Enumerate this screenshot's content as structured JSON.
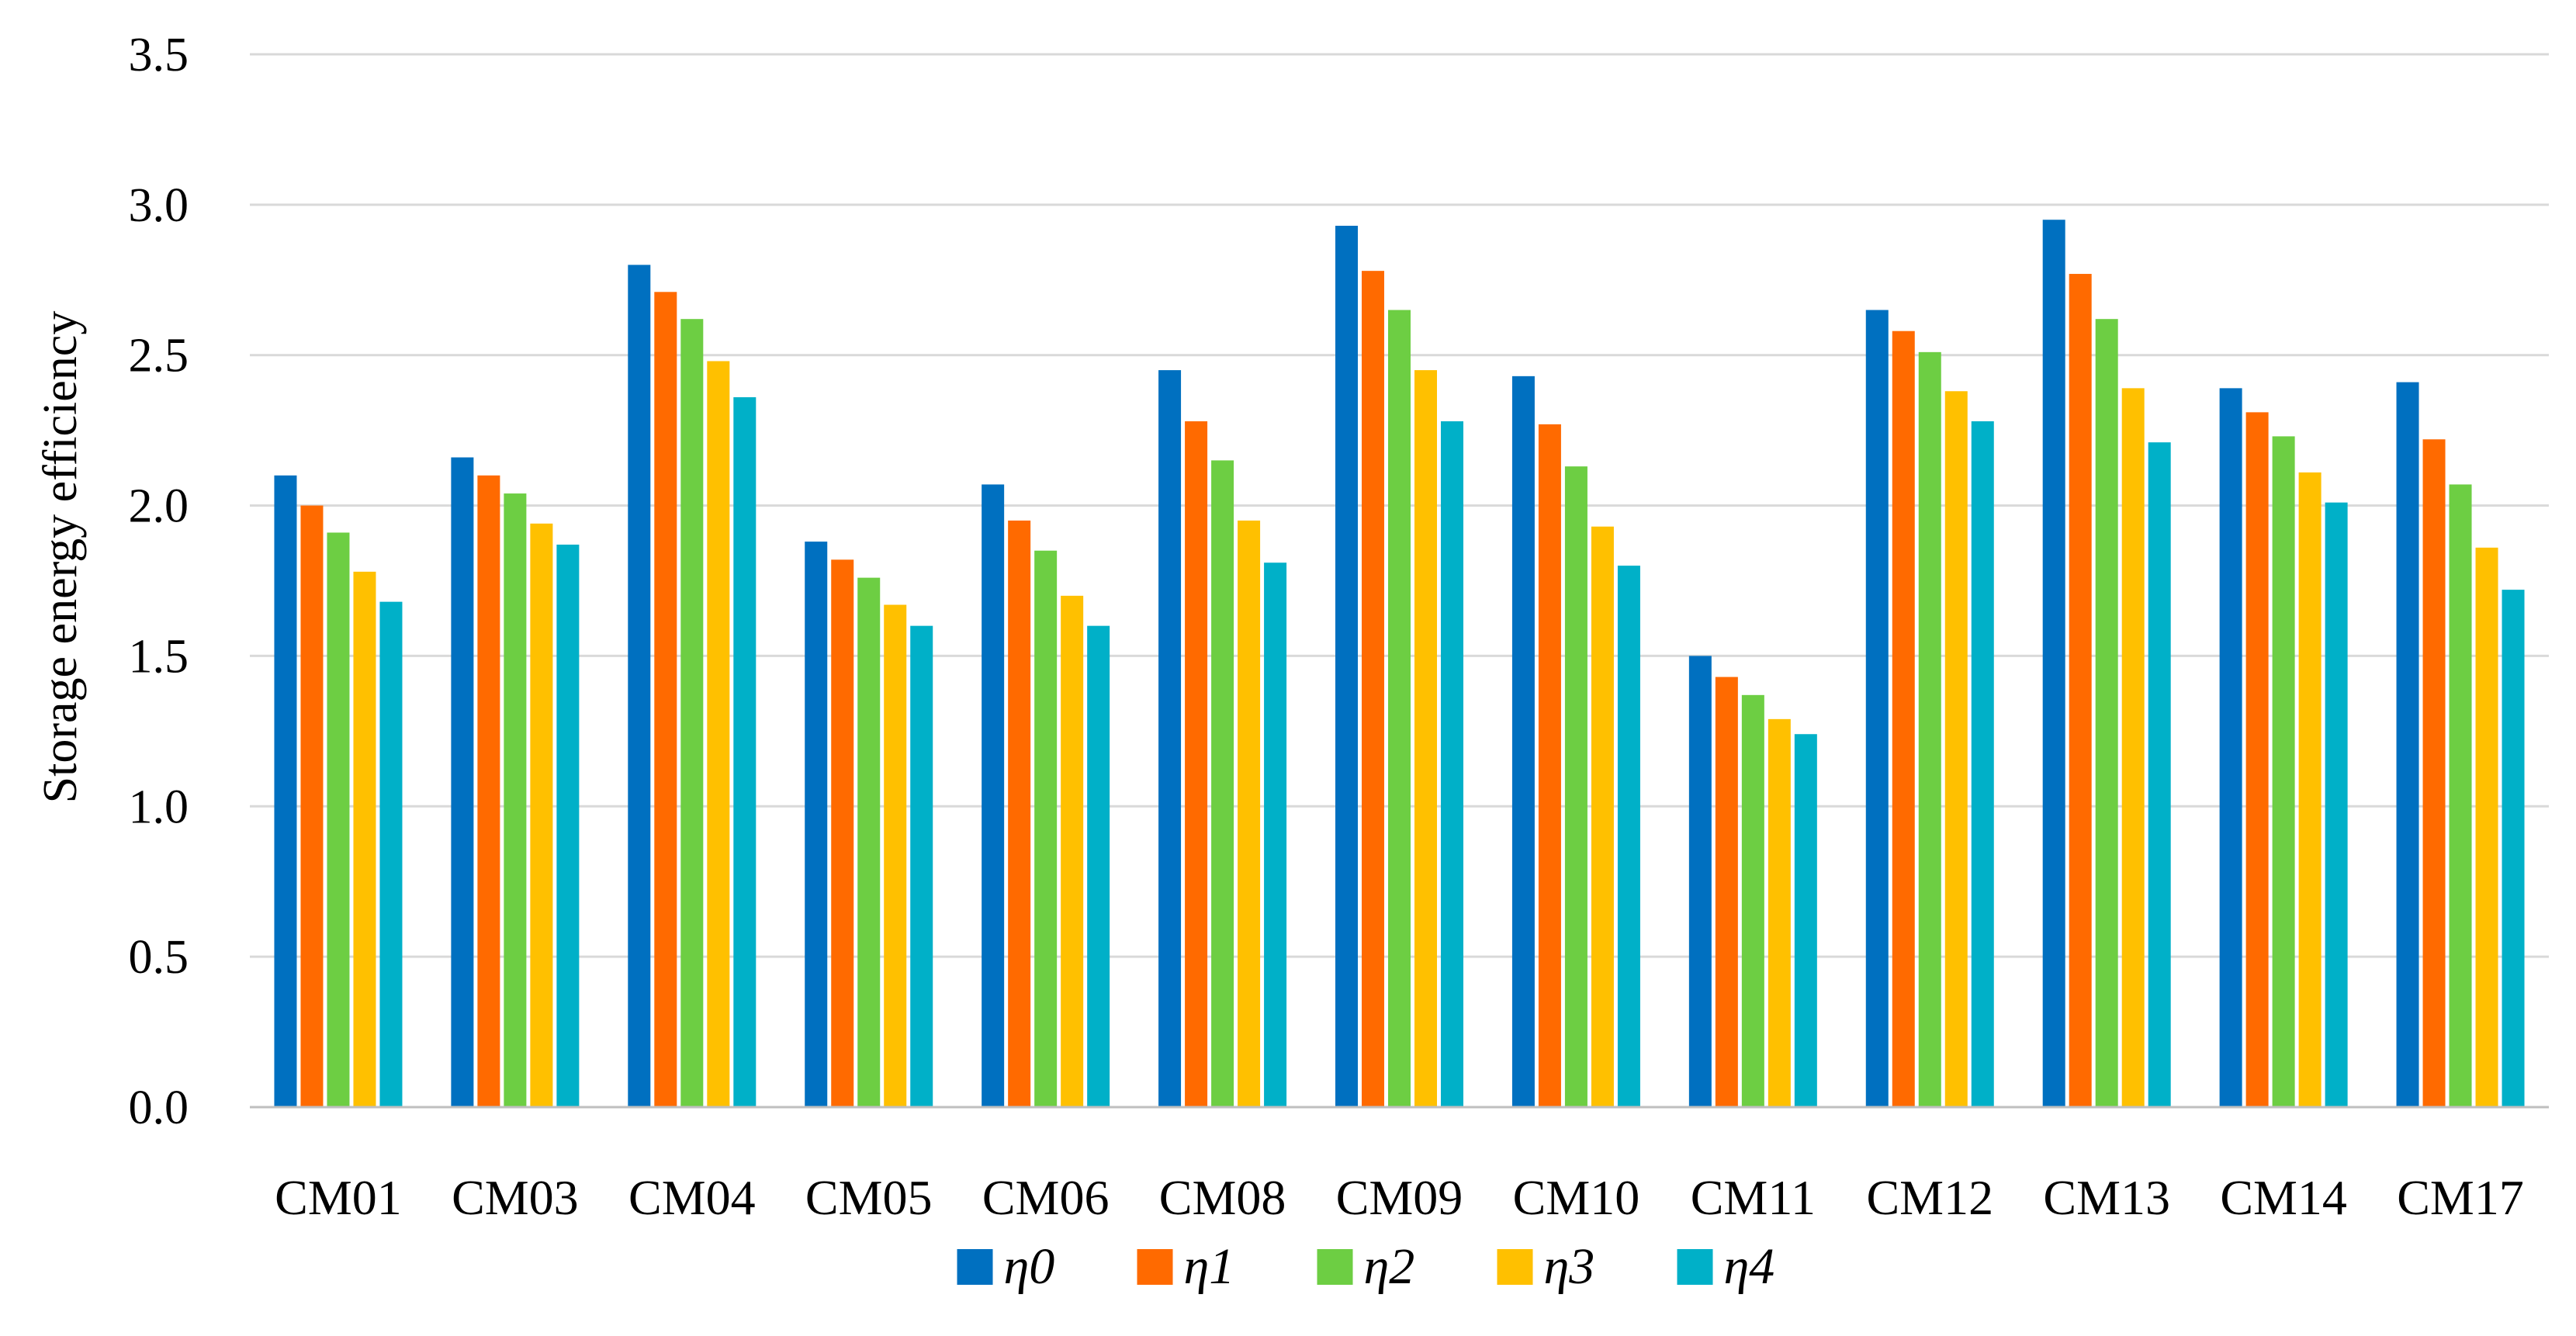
{
  "chart_data": {
    "type": "bar",
    "title": "",
    "xlabel": "",
    "ylabel": "Storage energy efficiency",
    "ylim": [
      0,
      3.5
    ],
    "yticks": [
      0,
      0.5,
      1,
      1.5,
      2,
      2.5,
      3,
      3.5
    ],
    "ytick_labels": [
      "0.0",
      "0.5",
      "1.0",
      "1.5",
      "2.0",
      "2.5",
      "3.0",
      "3.5"
    ],
    "grid": true,
    "legend_position": "bottom",
    "categories": [
      "CM01",
      "CM03",
      "CM04",
      "CM05",
      "CM06",
      "CM08",
      "CM09",
      "CM10",
      "CM11",
      "CM12",
      "CM13",
      "CM14",
      "CM17"
    ],
    "series": [
      {
        "name": "η0",
        "color": "#0070C0",
        "values": [
          2.1,
          2.16,
          2.8,
          1.88,
          2.07,
          2.45,
          2.93,
          2.43,
          1.5,
          2.65,
          2.95,
          2.39,
          2.41
        ]
      },
      {
        "name": "η1",
        "color": "#FF6A00",
        "values": [
          2.0,
          2.1,
          2.71,
          1.82,
          1.95,
          2.28,
          2.78,
          2.27,
          1.43,
          2.58,
          2.77,
          2.31,
          2.22
        ]
      },
      {
        "name": "η2",
        "color": "#6DCE43",
        "values": [
          1.91,
          2.04,
          2.62,
          1.76,
          1.85,
          2.15,
          2.65,
          2.13,
          1.37,
          2.51,
          2.62,
          2.23,
          2.07
        ]
      },
      {
        "name": "η3",
        "color": "#FFC000",
        "values": [
          1.78,
          1.94,
          2.48,
          1.67,
          1.7,
          1.95,
          2.45,
          1.93,
          1.29,
          2.38,
          2.39,
          2.11,
          1.86
        ]
      },
      {
        "name": "η4",
        "color": "#00B0C8",
        "values": [
          1.68,
          1.87,
          2.36,
          1.6,
          1.6,
          1.81,
          2.28,
          1.8,
          1.24,
          2.28,
          2.21,
          2.01,
          1.72
        ]
      }
    ],
    "style": {
      "grid_color": "#D9D9D9",
      "axis_color": "#BFBFBF"
    }
  }
}
